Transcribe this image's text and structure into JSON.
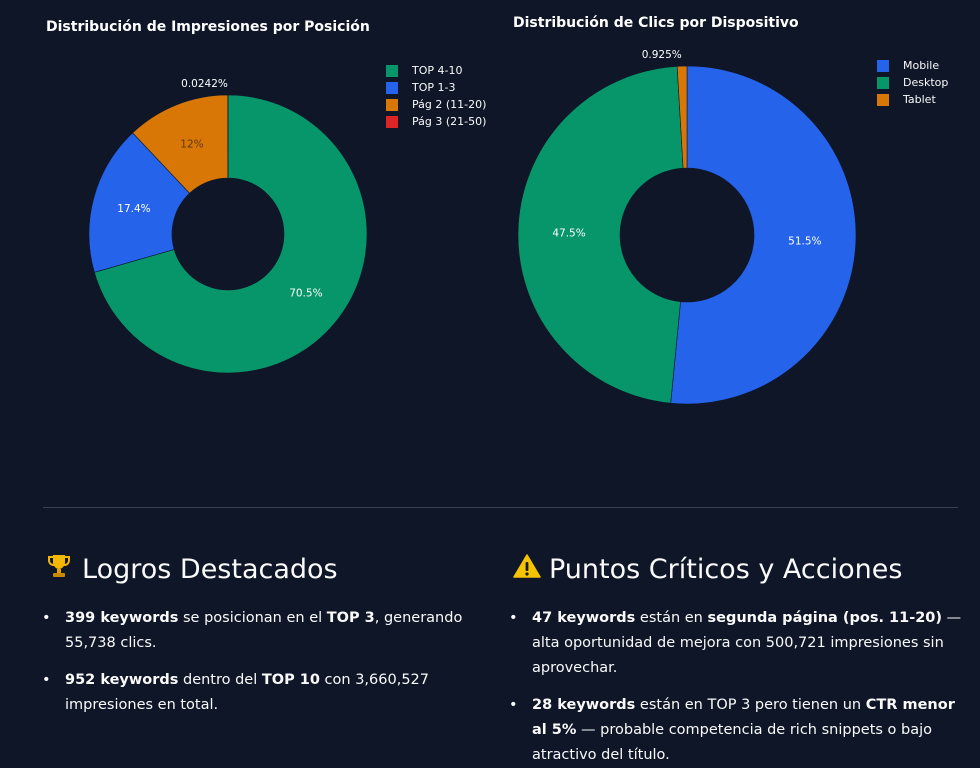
{
  "chart_data": [
    {
      "type": "pie",
      "hole": true,
      "title": "Distribución de Impresiones por Posición",
      "categories": [
        "TOP 4-10",
        "TOP 1-3",
        "Pág 2 (11-20)",
        "Pág 3 (21-50)"
      ],
      "values": [
        70.5,
        17.4,
        12,
        0.0242
      ],
      "labels": [
        "70.5%",
        "17.4%",
        "12%",
        "0.0242%"
      ],
      "colors": [
        "#079669",
        "#2563eb",
        "#d97706",
        "#dc2626"
      ],
      "legend": "top-right"
    },
    {
      "type": "pie",
      "hole": true,
      "title": "Distribución de Clics por Dispositivo",
      "categories": [
        "Mobile",
        "Desktop",
        "Tablet"
      ],
      "values": [
        51.5,
        47.5,
        0.925
      ],
      "labels": [
        "51.5%",
        "47.5%",
        "0.925%"
      ],
      "colors": [
        "#2563eb",
        "#079669",
        "#d97706"
      ],
      "legend": "top-right"
    }
  ],
  "logros": {
    "icon": "trophy-icon",
    "title": "Logros Destacados",
    "items": [
      {
        "b1": "399 keywords",
        "t1": " se posicionan en el ",
        "b2": "TOP 3",
        "t2": ", generando 55,738 clics."
      },
      {
        "b1": "952 keywords",
        "t1": " dentro del ",
        "b2": "TOP 10",
        "t2": " con 3,660,527 impresiones en total."
      }
    ]
  },
  "criticos": {
    "icon": "warning-icon",
    "title": "Puntos Críticos y Acciones",
    "items": [
      {
        "b1": "47 keywords",
        "t1": " están en ",
        "b2": "segunda página (pos. 11-20)",
        "t2": " — alta oportunidad de mejora con 500,721 impresiones sin aprovechar."
      },
      {
        "b1": "28 keywords",
        "t1": " están en TOP 3 pero tienen un ",
        "b2": "CTR menor al 5%",
        "t2": " — probable competencia de rich snippets o bajo atractivo del título."
      }
    ]
  }
}
